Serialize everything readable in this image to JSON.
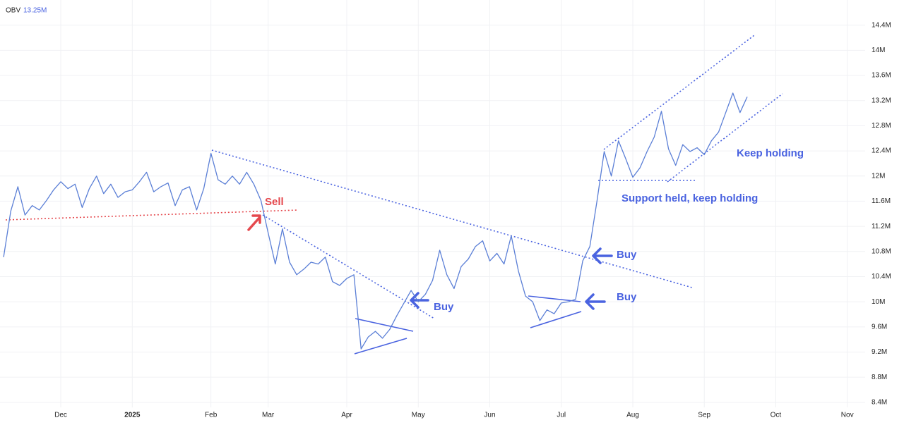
{
  "chart_data": {
    "type": "line",
    "indicator_name": "OBV",
    "indicator_value": "13.25M",
    "categories": [
      null,
      null,
      null,
      null,
      null,
      null,
      null,
      null,
      "Dec",
      null,
      null,
      null,
      null,
      null,
      null,
      null,
      null,
      null,
      "2025",
      null,
      null,
      null,
      null,
      null,
      null,
      null,
      null,
      null,
      null,
      "Feb",
      null,
      null,
      null,
      null,
      null,
      null,
      null,
      "Mar",
      null,
      null,
      null,
      null,
      null,
      null,
      null,
      null,
      null,
      null,
      "Apr",
      null,
      null,
      null,
      null,
      null,
      null,
      null,
      null,
      null,
      "May",
      null,
      null,
      null,
      null,
      null,
      null,
      null,
      null,
      null,
      "Jun",
      null,
      null,
      null,
      null,
      null,
      null,
      null,
      null,
      null,
      "Jul",
      null,
      null,
      null,
      null,
      null,
      null,
      null,
      null,
      null,
      "Aug",
      null,
      null,
      null,
      null,
      null,
      null,
      null,
      null,
      null,
      "Sep",
      null,
      null,
      null,
      null,
      null,
      null,
      null,
      null,
      null,
      "Oct",
      null,
      null,
      null,
      null,
      null,
      null,
      null,
      null,
      null,
      "Nov",
      null,
      null
    ],
    "series": [
      {
        "name": "OBV",
        "color": "#5b7fd6",
        "values": [
          10.71,
          11.44,
          11.83,
          11.38,
          11.53,
          11.46,
          11.61,
          11.78,
          11.91,
          11.8,
          11.87,
          11.5,
          11.8,
          12.0,
          11.72,
          11.87,
          11.66,
          11.75,
          11.78,
          11.91,
          12.06,
          11.75,
          11.83,
          11.89,
          11.53,
          11.78,
          11.83,
          11.46,
          11.8,
          12.36,
          11.94,
          11.87,
          12.0,
          11.87,
          12.06,
          11.87,
          11.61,
          11.1,
          10.6,
          11.16,
          10.63,
          10.43,
          10.52,
          10.63,
          10.6,
          10.71,
          10.32,
          10.26,
          10.37,
          10.43,
          9.25,
          9.44,
          9.53,
          9.42,
          9.56,
          9.78,
          9.98,
          10.18,
          10.0,
          10.12,
          10.34,
          10.82,
          10.43,
          10.21,
          10.56,
          10.68,
          10.88,
          10.97,
          10.65,
          10.77,
          10.6,
          11.05,
          10.49,
          10.09,
          10.0,
          9.7,
          9.87,
          9.81,
          9.98,
          10.0,
          10.04,
          10.65,
          10.88,
          11.61,
          12.39,
          12.0,
          12.56,
          12.28,
          11.98,
          12.13,
          12.39,
          12.62,
          13.03,
          12.43,
          12.17,
          12.5,
          12.39,
          12.45,
          12.34,
          12.56,
          12.7,
          13.01,
          13.32,
          13.01,
          13.26,
          null,
          null,
          null,
          null,
          null,
          null,
          null,
          null,
          null,
          null,
          null,
          null,
          null,
          null,
          null,
          null
        ]
      }
    ],
    "ylim": [
      8.32,
      14.8
    ],
    "yticks": [
      {
        "value": 8.4,
        "label": "8.4M"
      },
      {
        "value": 8.8,
        "label": "8.8M"
      },
      {
        "value": 9.2,
        "label": "9.2M"
      },
      {
        "value": 9.6,
        "label": "9.6M"
      },
      {
        "value": 10.0,
        "label": "10M"
      },
      {
        "value": 10.4,
        "label": "10.4M"
      },
      {
        "value": 10.8,
        "label": "10.8M"
      },
      {
        "value": 11.2,
        "label": "11.2M"
      },
      {
        "value": 11.6,
        "label": "11.6M"
      },
      {
        "value": 12.0,
        "label": "12M"
      },
      {
        "value": 12.4,
        "label": "12.4M"
      },
      {
        "value": 12.8,
        "label": "12.8M"
      },
      {
        "value": 13.2,
        "label": "13.2M"
      },
      {
        "value": 13.6,
        "label": "13.6M"
      },
      {
        "value": 14.0,
        "label": "14M"
      },
      {
        "value": 14.4,
        "label": "14.4M"
      }
    ],
    "grid": true,
    "annotations": [
      {
        "text": "Sell",
        "color": "#e5484d"
      },
      {
        "text": "Buy",
        "color": "#4a63e0"
      },
      {
        "text": "Buy",
        "color": "#4a63e0"
      },
      {
        "text": "Buy",
        "color": "#4a63e0"
      },
      {
        "text": "Support held, keep holding",
        "color": "#4a63e0"
      },
      {
        "text": "Keep holding",
        "color": "#4a63e0"
      }
    ]
  }
}
